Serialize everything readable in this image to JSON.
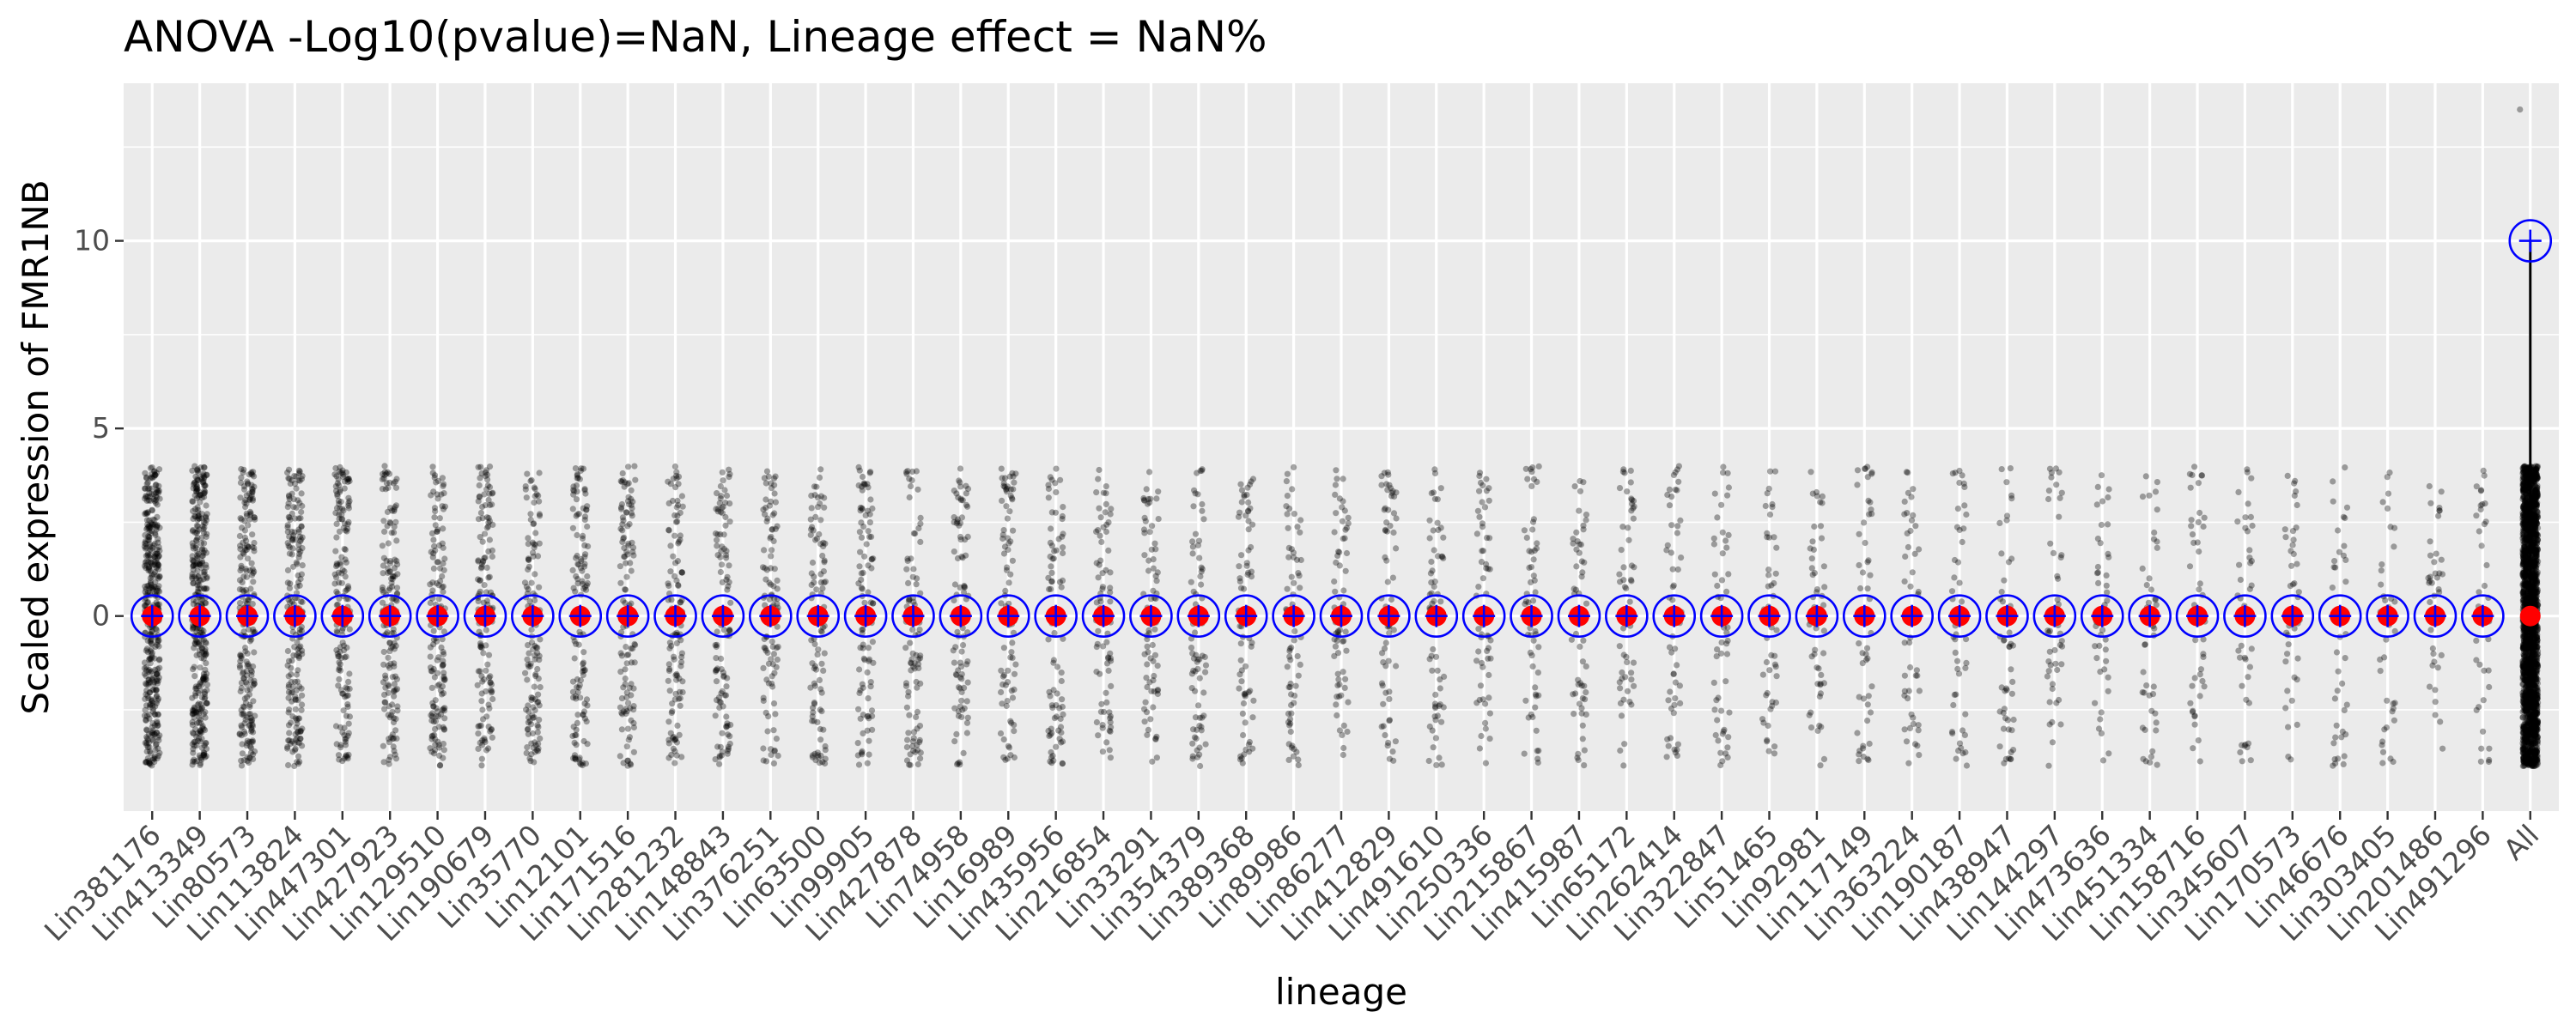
{
  "chart_data": {
    "type": "scatter",
    "subtype": "jittered strip plot with mean and median markers per lineage",
    "title": "ANOVA -Log10(pvalue)=NaN, Lineage effect = NaN%",
    "xlabel": "lineage",
    "ylabel": "Scaled expression of FMR1NB",
    "ylim": [
      -5.2,
      14.2
    ],
    "y_ticks": [
      0,
      5,
      10
    ],
    "y_tick_labels": [
      "0",
      "5",
      "10"
    ],
    "grid": true,
    "legend": "none",
    "categories": [
      "Lin381176",
      "Lin413349",
      "Lin80573",
      "Lin113824",
      "Lin447301",
      "Lin427923",
      "Lin129510",
      "Lin190679",
      "Lin35770",
      "Lin12101",
      "Lin171516",
      "Lin281232",
      "Lin148843",
      "Lin376251",
      "Lin63500",
      "Lin99905",
      "Lin427878",
      "Lin74958",
      "Lin16989",
      "Lin435956",
      "Lin216854",
      "Lin33291",
      "Lin354379",
      "Lin389368",
      "Lin89986",
      "Lin86277",
      "Lin412829",
      "Lin491610",
      "Lin250336",
      "Lin215867",
      "Lin415987",
      "Lin65172",
      "Lin262414",
      "Lin322847",
      "Lin51465",
      "Lin92981",
      "Lin117149",
      "Lin363224",
      "Lin190187",
      "Lin438947",
      "Lin144297",
      "Lin473636",
      "Lin451334",
      "Lin158716",
      "Lin345607",
      "Lin170573",
      "Lin46676",
      "Lin303405",
      "Lin201486",
      "Lin491296",
      "All"
    ],
    "points_range": [
      -4,
      4
    ],
    "points_per_category": [
      400,
      360,
      230,
      200,
      170,
      160,
      150,
      140,
      130,
      125,
      120,
      115,
      110,
      105,
      100,
      96,
      92,
      88,
      85,
      82,
      80,
      77,
      75,
      72,
      70,
      68,
      66,
      64,
      62,
      60,
      58,
      56,
      55,
      54,
      53,
      52,
      51,
      50,
      49,
      48,
      47,
      46,
      45,
      44,
      43,
      42,
      41,
      40,
      39,
      38,
      2200
    ],
    "outlier_all": 13.5,
    "means": [
      0,
      0,
      0,
      0,
      0,
      0,
      0,
      0,
      0,
      0,
      0,
      0,
      0,
      0,
      0,
      0,
      0,
      0,
      0,
      0,
      0,
      0,
      0,
      0,
      0,
      0,
      0,
      0,
      0,
      0,
      0,
      0,
      0,
      0,
      0,
      0,
      0,
      0,
      0,
      0,
      0,
      0,
      0,
      0,
      0,
      0,
      0,
      0,
      0,
      0,
      10
    ],
    "medians": [
      0,
      0,
      0,
      0,
      0,
      0,
      0,
      0,
      0,
      0,
      0,
      0,
      0,
      0,
      0,
      0,
      0,
      0,
      0,
      0,
      0,
      0,
      0,
      0,
      0,
      0,
      0,
      0,
      0,
      0,
      0,
      0,
      0,
      0,
      0,
      0,
      0,
      0,
      0,
      0,
      0,
      0,
      0,
      0,
      0,
      0,
      0,
      0,
      0,
      0,
      0
    ],
    "mean_marker": "open blue circle with blue cross",
    "median_marker": "red dot",
    "colors": {
      "panel": "#ebebeb",
      "grid": "#ffffff",
      "points": "#000000",
      "mean_circle": "#0000ff",
      "median_dot": "#ff0000"
    }
  }
}
